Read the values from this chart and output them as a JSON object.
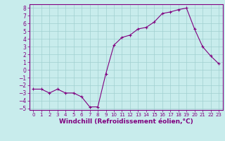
{
  "x": [
    0,
    1,
    2,
    3,
    4,
    5,
    6,
    7,
    8,
    9,
    10,
    11,
    12,
    13,
    14,
    15,
    16,
    17,
    18,
    19,
    20,
    21,
    22,
    23
  ],
  "y": [
    -2.5,
    -2.5,
    -3,
    -2.5,
    -3,
    -3,
    -3.5,
    -4.8,
    -4.8,
    -0.5,
    3.2,
    4.2,
    4.5,
    5.3,
    5.5,
    6.2,
    7.3,
    7.5,
    7.8,
    8.0,
    5.3,
    3.0,
    1.8,
    0.8
  ],
  "xlabel": "Windchill (Refroidissement éolien,°C)",
  "line_color": "#800080",
  "marker": "+",
  "bg_color": "#c8ecec",
  "grid_color": "#a0d0d0",
  "xlim": [
    -0.5,
    23.5
  ],
  "ylim": [
    -5.2,
    8.5
  ],
  "xticks": [
    0,
    1,
    2,
    3,
    4,
    5,
    6,
    7,
    8,
    9,
    10,
    11,
    12,
    13,
    14,
    15,
    16,
    17,
    18,
    19,
    20,
    21,
    22,
    23
  ],
  "yticks": [
    -5,
    -4,
    -3,
    -2,
    -1,
    0,
    1,
    2,
    3,
    4,
    5,
    6,
    7,
    8
  ],
  "axis_color": "#800080",
  "tick_color": "#800080",
  "xlabel_fontsize": 6.5,
  "tick_fontsize_x": 5.0,
  "tick_fontsize_y": 5.5
}
